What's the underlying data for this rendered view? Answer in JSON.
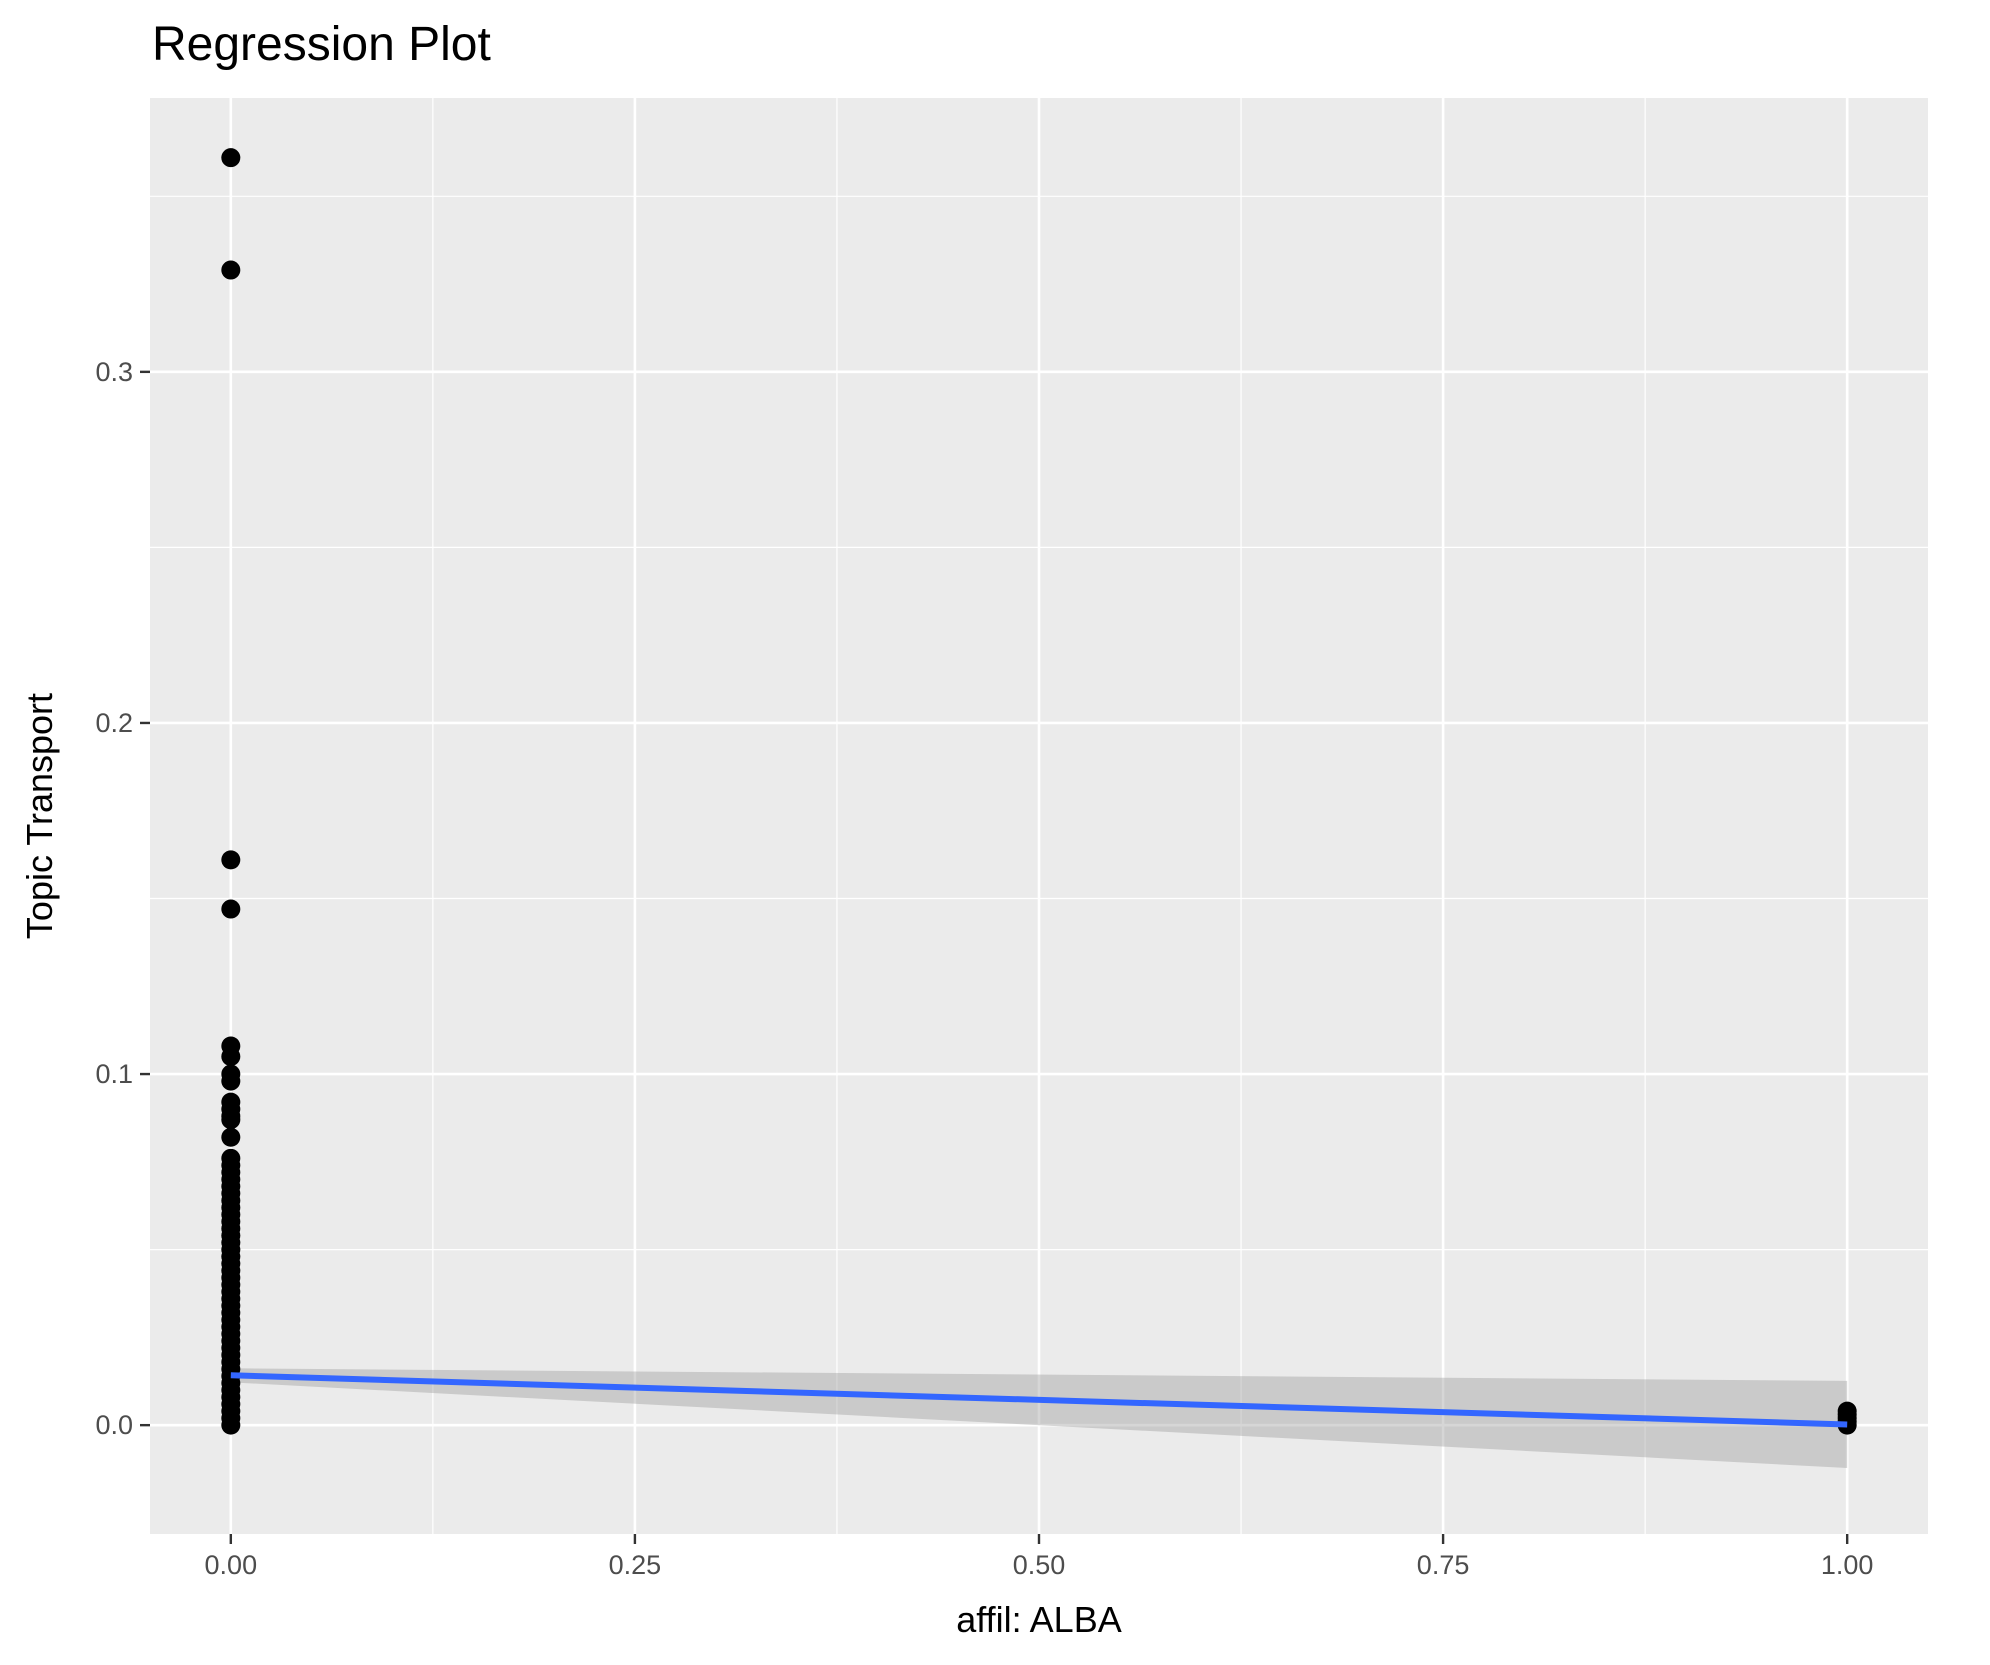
{
  "chart_data": {
    "type": "scatter",
    "title": "Regression Plot",
    "xlabel": "affil: ALBA",
    "ylabel": "Topic Transport",
    "xlim": [
      -0.05,
      1.05
    ],
    "ylim": [
      -0.031,
      0.378
    ],
    "x_ticks": [
      {
        "value": 0.0,
        "label": "0.00"
      },
      {
        "value": 0.25,
        "label": "0.25"
      },
      {
        "value": 0.5,
        "label": "0.50"
      },
      {
        "value": 0.75,
        "label": "0.75"
      },
      {
        "value": 1.0,
        "label": "1.00"
      }
    ],
    "y_ticks": [
      {
        "value": 0.0,
        "label": "0.0"
      },
      {
        "value": 0.1,
        "label": "0.1"
      },
      {
        "value": 0.2,
        "label": "0.2"
      },
      {
        "value": 0.3,
        "label": "0.3"
      }
    ],
    "x_minor": [
      0.125,
      0.375,
      0.625,
      0.875
    ],
    "y_minor": [
      0.05,
      0.15,
      0.25,
      0.35
    ],
    "grid": true,
    "points": [
      [
        0,
        0.361
      ],
      [
        0,
        0.329
      ],
      [
        0,
        0.161
      ],
      [
        0,
        0.147
      ],
      [
        0,
        0.108
      ],
      [
        0,
        0.105
      ],
      [
        0,
        0.1
      ],
      [
        0,
        0.098
      ],
      [
        0,
        0.092
      ],
      [
        0,
        0.09
      ],
      [
        0,
        0.088
      ],
      [
        0,
        0.087
      ],
      [
        0,
        0.082
      ],
      [
        0,
        0.076
      ],
      [
        0,
        0.074
      ],
      [
        0,
        0.072
      ],
      [
        0,
        0.07
      ],
      [
        0,
        0.068
      ],
      [
        0,
        0.066
      ],
      [
        0,
        0.064
      ],
      [
        0,
        0.062
      ],
      [
        0,
        0.06
      ],
      [
        0,
        0.058
      ],
      [
        0,
        0.056
      ],
      [
        0,
        0.054
      ],
      [
        0,
        0.052
      ],
      [
        0,
        0.05
      ],
      [
        0,
        0.048
      ],
      [
        0,
        0.046
      ],
      [
        0,
        0.044
      ],
      [
        0,
        0.042
      ],
      [
        0,
        0.04
      ],
      [
        0,
        0.038
      ],
      [
        0,
        0.036
      ],
      [
        0,
        0.034
      ],
      [
        0,
        0.032
      ],
      [
        0,
        0.03
      ],
      [
        0,
        0.028
      ],
      [
        0,
        0.026
      ],
      [
        0,
        0.024
      ],
      [
        0,
        0.022
      ],
      [
        0,
        0.02
      ],
      [
        0,
        0.018
      ],
      [
        0,
        0.016
      ],
      [
        0,
        0.014
      ],
      [
        0,
        0.012
      ],
      [
        0,
        0.01
      ],
      [
        0,
        0.008
      ],
      [
        0,
        0.006
      ],
      [
        0,
        0.004
      ],
      [
        0,
        0.002
      ],
      [
        0,
        0.0
      ],
      [
        1,
        0.004
      ],
      [
        1,
        0.003
      ],
      [
        1,
        0.002
      ],
      [
        1,
        0.001
      ],
      [
        1,
        0.0
      ]
    ],
    "regression": {
      "x": [
        0,
        1
      ],
      "y": [
        0.0142,
        0.0002
      ],
      "ci_lower": [
        0.0122,
        -0.0122
      ],
      "ci_upper": [
        0.0162,
        0.0126
      ]
    },
    "colors": {
      "panel_background": "#ebebeb",
      "grid": "#ffffff",
      "points": "#000000",
      "line": "#3366ff",
      "ribbon": "#999999",
      "tick_label": "#4d4d4d",
      "tick_mark": "#333333"
    }
  }
}
